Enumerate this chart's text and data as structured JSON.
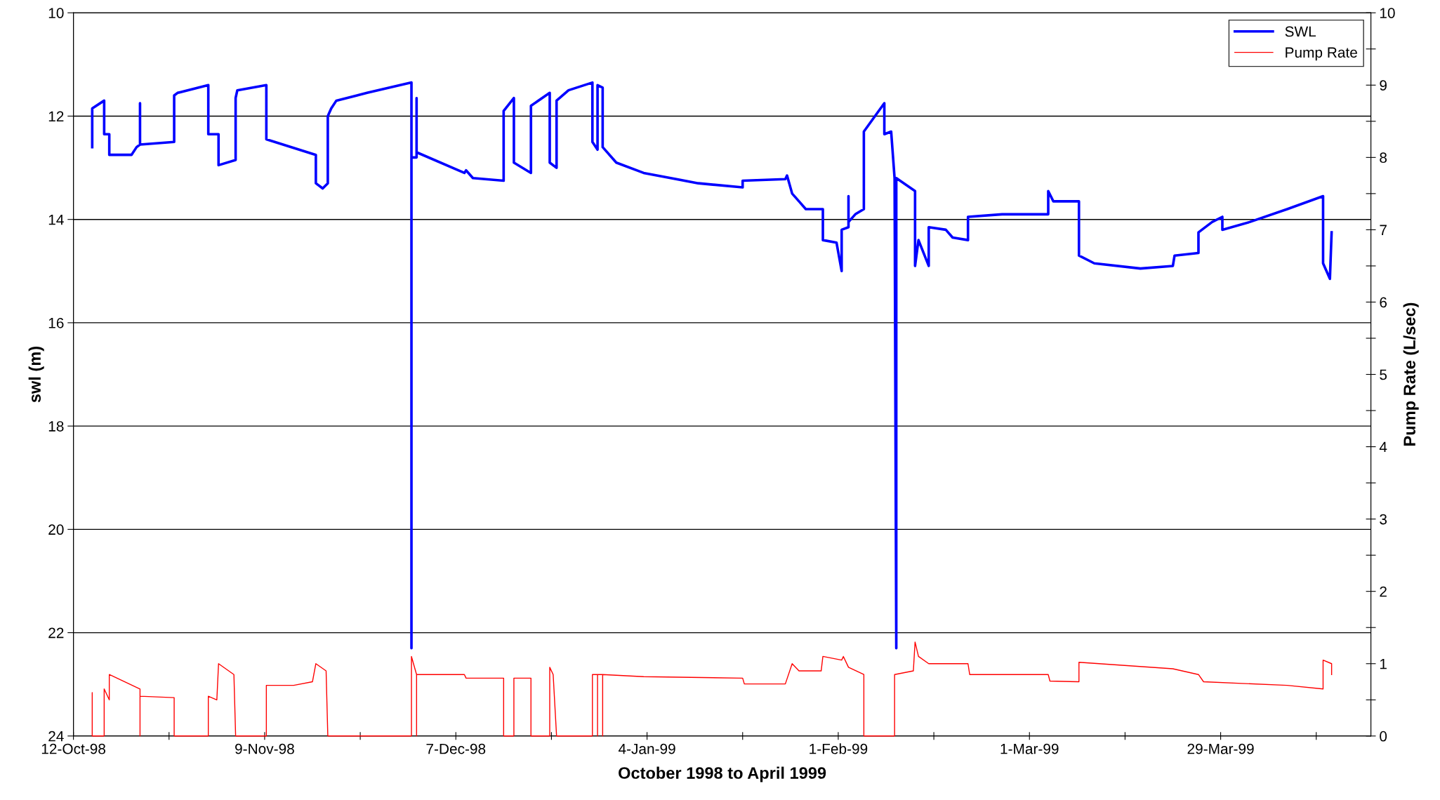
{
  "chart_data": {
    "type": "line",
    "xlabel": "October 1998 to April 1999",
    "ylabel": "swl (m)",
    "y2label": "Pump Rate (L/sec)",
    "xlim": [
      "1998-10-12",
      "1999-04-20"
    ],
    "xticks": [
      {
        "value": "1998-10-12",
        "label": "12-Oct-98"
      },
      {
        "value": "1998-10-26",
        "label": null
      },
      {
        "value": "1998-11-09",
        "label": "9-Nov-98"
      },
      {
        "value": "1998-11-23",
        "label": null
      },
      {
        "value": "1998-12-07",
        "label": "7-Dec-98"
      },
      {
        "value": "1998-12-21",
        "label": null
      },
      {
        "value": "1999-01-04",
        "label": "4-Jan-99"
      },
      {
        "value": "1999-01-18",
        "label": null
      },
      {
        "value": "1999-02-01",
        "label": "1-Feb-99"
      },
      {
        "value": "1999-02-15",
        "label": null
      },
      {
        "value": "1999-03-01",
        "label": "1-Mar-99"
      },
      {
        "value": "1999-03-15",
        "label": null
      },
      {
        "value": "1999-03-29",
        "label": "29-Mar-99"
      },
      {
        "value": "1999-04-12",
        "label": null
      }
    ],
    "ylim": [
      24,
      10
    ],
    "yticks": [
      10,
      12,
      14,
      16,
      18,
      20,
      22,
      24
    ],
    "y2lim": [
      0,
      10
    ],
    "y2ticks": [
      0,
      {
        "value": 0.5,
        "label": null
      },
      1,
      {
        "value": 1.5,
        "label": null
      },
      2,
      {
        "value": 2.5,
        "label": null
      },
      3,
      {
        "value": 3.5,
        "label": null
      },
      4,
      {
        "value": 4.5,
        "label": null
      },
      5,
      {
        "value": 5.5,
        "label": null
      },
      6,
      {
        "value": 6.5,
        "label": null
      },
      7,
      {
        "value": 7.5,
        "label": null
      },
      8,
      {
        "value": 8.5,
        "label": null
      },
      9,
      {
        "value": 9.5,
        "label": null
      },
      10
    ],
    "grid": "y",
    "legend": "top right",
    "marker": "none",
    "line_style": "solid",
    "series": [
      {
        "name": "SWL",
        "color": "#0000ff",
        "x": [
          "1998-10-14T18:00",
          "1998-10-14T18:00",
          "1998-10-16T12:00",
          "1998-10-16T12:00",
          "1998-10-17T06:00",
          "1998-10-17T06:00",
          "1998-10-20T12:00",
          "1998-10-21T06:00",
          "1998-10-21T18:00",
          "1998-10-21T18:00",
          "1998-10-21T18:00",
          "1998-10-26T18:00",
          "1998-10-26T18:00",
          "1998-10-27T06:00",
          "1998-10-31T18:00",
          "1998-10-31T18:00",
          "1998-11-02T06:00",
          "1998-11-02T06:00",
          "1998-11-04T18:00",
          "1998-11-04T18:00",
          "1998-11-05T00:00",
          "1998-11-09T06:00",
          "1998-11-09T06:00",
          "1998-11-16T12:00",
          "1998-11-16T12:00",
          "1998-11-17T12:00",
          "1998-11-18T06:00",
          "1998-11-18T06:00",
          "1998-11-18T18:00",
          "1998-11-19T12:00",
          "1998-11-24T00:00",
          "1998-11-30T12:00",
          "1998-11-30T12:00",
          "1998-11-30T12:00",
          "1998-12-01T06:00",
          "1998-12-01T06:00",
          "1998-12-01T06:00",
          "1998-12-08T06:00",
          "1998-12-08T12:00",
          "1998-12-09T12:00",
          "1998-12-14T00:00",
          "1998-12-14T00:00",
          "1998-12-15T12:00",
          "1998-12-15T12:00",
          "1998-12-18T00:00",
          "1998-12-18T00:00",
          "1998-12-20T18:00",
          "1998-12-20T18:00",
          "1998-12-21T18:00",
          "1998-12-21T18:00",
          "1998-12-23T12:00",
          "1998-12-27T00:00",
          "1998-12-27T00:00",
          "1998-12-27T18:00",
          "1998-12-27T18:00",
          "1998-12-28T12:00",
          "1998-12-28T12:00",
          "1998-12-30T12:00",
          "1999-01-03T12:00",
          "1999-01-11T12:00",
          "1999-01-18T00:00",
          "1999-01-18T00:00",
          "1999-01-24T06:00",
          "1999-01-24T12:00",
          "1999-01-25T06:00",
          "1999-01-26T06:00",
          "1999-01-27T06:00",
          "1999-01-29T18:00",
          "1999-01-29T18:00",
          "1999-01-31T18:00",
          "1999-02-01T12:00",
          "1999-02-01T12:00",
          "1999-02-02T12:00",
          "1999-02-02T12:00",
          "1999-02-02T12:00",
          "1999-02-03T12:00",
          "1999-02-04T18:00",
          "1999-02-04T18:00",
          "1999-02-07T18:00",
          "1999-02-07T18:00",
          "1999-02-08T18:00",
          "1999-02-09T06:00",
          "1999-02-09T12:00",
          "1999-02-09T12:00",
          "1999-02-12T06:00",
          "1999-02-12T06:00",
          "1999-02-12T18:00",
          "1999-02-14T06:00",
          "1999-02-14T06:00",
          "1999-02-16T18:00",
          "1999-02-17T18:00",
          "1999-02-20T00:00",
          "1999-02-20T00:00",
          "1999-02-25T00:00",
          "1999-03-03T18:00",
          "1999-03-03T18:00",
          "1999-03-04T12:00",
          "1999-03-08T06:00",
          "1999-03-08T06:00",
          "1999-03-10T12:00",
          "1999-03-17T06:00",
          "1999-03-22T00:00",
          "1999-03-22T06:00",
          "1999-03-25T18:00",
          "1999-03-25T18:00",
          "1999-03-27T18:00",
          "1999-03-29T06:00",
          "1999-03-29T06:00",
          "1999-04-02T06:00",
          "1999-04-07T18:00",
          "1999-04-13T00:00",
          "1999-04-13T00:00",
          "1999-04-14T00:00",
          "1999-04-14T06:00"
        ],
        "values": [
          12.6,
          11.85,
          11.7,
          12.35,
          12.35,
          12.75,
          12.75,
          12.6,
          12.55,
          11.75,
          12.55,
          12.5,
          11.6,
          11.55,
          11.4,
          12.35,
          12.35,
          12.95,
          12.85,
          11.65,
          11.5,
          11.4,
          12.45,
          12.75,
          13.3,
          13.4,
          13.3,
          12.0,
          11.85,
          11.7,
          11.55,
          11.35,
          22.3,
          12.8,
          12.8,
          11.65,
          12.7,
          13.1,
          13.05,
          13.2,
          13.25,
          11.9,
          11.65,
          12.9,
          13.1,
          11.8,
          11.55,
          12.9,
          13.0,
          11.7,
          11.5,
          11.35,
          12.5,
          12.65,
          11.4,
          11.45,
          12.6,
          12.9,
          13.1,
          13.3,
          13.38,
          13.25,
          13.22,
          13.15,
          13.5,
          13.65,
          13.8,
          13.8,
          14.4,
          14.45,
          15.0,
          14.2,
          14.15,
          13.55,
          14.05,
          13.9,
          13.8,
          12.3,
          11.75,
          12.35,
          12.3,
          13.2,
          22.3,
          13.2,
          13.45,
          14.9,
          14.4,
          14.9,
          14.15,
          14.2,
          14.35,
          14.4,
          13.95,
          13.9,
          13.9,
          13.45,
          13.65,
          13.65,
          14.7,
          14.85,
          14.95,
          14.9,
          14.7,
          14.65,
          14.25,
          14.05,
          13.95,
          14.2,
          14.05,
          13.8,
          13.55,
          14.85,
          15.15,
          14.25
        ]
      },
      {
        "name": "Pump Rate",
        "color": "#ff0000",
        "axis": "y2",
        "x": [
          "1998-10-14T18:00",
          "1998-10-14T18:00",
          "1998-10-14T18:00",
          "1998-10-16T12:00",
          "1998-10-16T12:00",
          "1998-10-17T06:00",
          "1998-10-17T06:00",
          "1998-10-21T18:00",
          "1998-10-21T18:00",
          "1998-10-21T18:00",
          "1998-10-26T18:00",
          "1998-10-26T18:00",
          "1998-10-31T18:00",
          "1998-10-31T18:00",
          "1998-11-02T00:00",
          "1998-11-02T06:00",
          "1998-11-04T12:00",
          "1998-11-04T18:00",
          "1998-11-09T06:00",
          "1998-11-09T06:00",
          "1998-11-13T06:00",
          "1998-11-16T00:00",
          "1998-11-16T12:00",
          "1998-11-18T00:00",
          "1998-11-18T06:00",
          "1998-11-30T12:00",
          "1998-11-30T12:00",
          "1998-12-01T06:00",
          "1998-12-01T06:00",
          "1998-12-01T06:00",
          "1998-12-08T06:00",
          "1998-12-08T12:00",
          "1998-12-14T00:00",
          "1998-12-14T00:00",
          "1998-12-15T12:00",
          "1998-12-15T12:00",
          "1998-12-18T00:00",
          "1998-12-18T00:00",
          "1998-12-20T18:00",
          "1998-12-20T18:00",
          "1998-12-21T06:00",
          "1998-12-21T18:00",
          "1998-12-27T00:00",
          "1998-12-27T00:00",
          "1998-12-27T18:00",
          "1998-12-27T18:00",
          "1998-12-27T18:00",
          "1998-12-28T12:00",
          "1998-12-28T12:00",
          "1998-12-28T12:00",
          "1999-01-03T12:00",
          "1999-01-18T00:00",
          "1999-01-18T06:00",
          "1999-01-24T06:00",
          "1999-01-25T06:00",
          "1999-01-26T06:00",
          "1999-01-29T12:00",
          "1999-01-29T18:00",
          "1999-02-01T12:00",
          "1999-02-01T18:00",
          "1999-02-02T12:00",
          "1999-02-04T18:00",
          "1999-02-04T18:00",
          "1999-02-09T06:00",
          "1999-02-09T06:00",
          "1999-02-12T00:00",
          "1999-02-12T06:00",
          "1999-02-12T18:00",
          "1999-02-14T06:00",
          "1999-02-14T12:00",
          "1999-02-20T00:00",
          "1999-02-20T06:00",
          "1999-03-03T18:00",
          "1999-03-04T00:00",
          "1999-03-08T06:00",
          "1999-03-08T06:00",
          "1999-03-22T00:00",
          "1999-03-25T18:00",
          "1999-03-26T12:00",
          "1999-04-07T18:00",
          "1999-04-13T00:00",
          "1999-04-13T00:00",
          "1999-04-14T06:00",
          "1999-04-14T06:00"
        ],
        "values": [
          0,
          0.6,
          0,
          0,
          0.65,
          0.5,
          0.85,
          0.65,
          0,
          0.55,
          0.53,
          0,
          0,
          0.55,
          0.5,
          1.0,
          0.85,
          0,
          0,
          0.7,
          0.7,
          0.75,
          1.0,
          0.9,
          0,
          0,
          1.1,
          0.85,
          0,
          0.85,
          0.85,
          0.8,
          0.8,
          0,
          0,
          0.8,
          0.8,
          0,
          0,
          0.95,
          0.85,
          0,
          0,
          0.85,
          0.85,
          0,
          0.85,
          0.85,
          0,
          0.85,
          0.82,
          0.8,
          0.72,
          0.72,
          1.0,
          0.9,
          0.9,
          1.1,
          1.05,
          1.1,
          0.95,
          0.85,
          0,
          0,
          0.85,
          0.9,
          1.3,
          1.1,
          1.0,
          1.0,
          1.0,
          0.85,
          0.85,
          0.76,
          0.75,
          1.02,
          0.93,
          0.85,
          0.75,
          0.7,
          0.65,
          1.05,
          1.0,
          0.85
        ]
      }
    ]
  }
}
